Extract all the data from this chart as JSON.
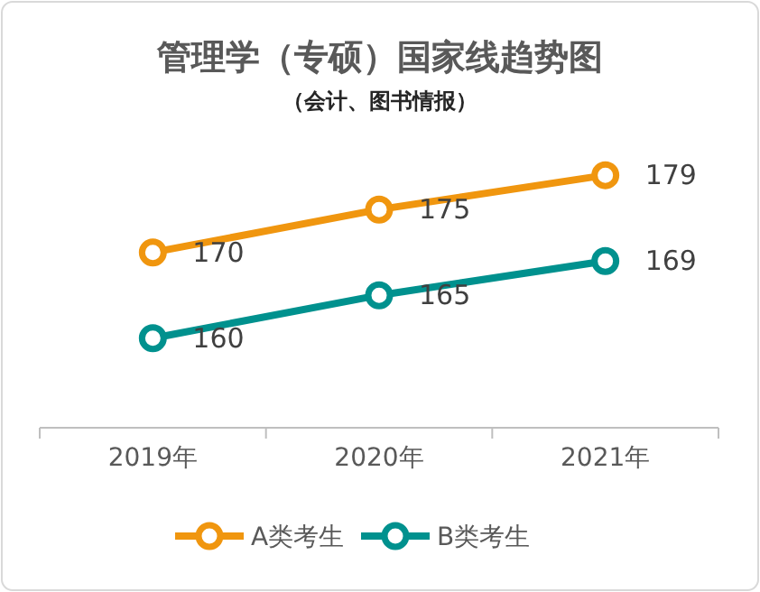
{
  "chart_data": {
    "type": "line",
    "title": "管理学（专硕）国家线趋势图",
    "subtitle": "（会计、图书情报）",
    "categories": [
      "2019年",
      "2020年",
      "2021年"
    ],
    "series": [
      {
        "name": "A类考生",
        "color": "#f0960f",
        "values": [
          170,
          175,
          179
        ]
      },
      {
        "name": "B类考生",
        "color": "#00918e",
        "values": [
          160,
          165,
          169
        ]
      }
    ],
    "data_labels": true,
    "marker": "circle",
    "legend": "bottom",
    "grid": false
  }
}
